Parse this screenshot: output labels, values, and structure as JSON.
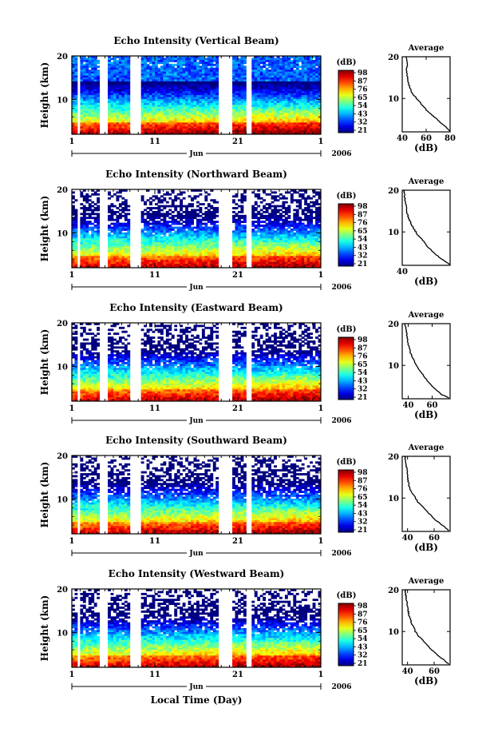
{
  "figure": {
    "xlabel": "Local Time (Day)"
  },
  "chart_data": [
    {
      "type": "heatmap",
      "title": "Echo Intensity (Vertical Beam)",
      "ylabel": "Height (km)",
      "yticks": [
        10,
        20
      ],
      "ylim": [
        2,
        20
      ],
      "xticks": [
        "1",
        "11",
        "21",
        "1"
      ],
      "month": "Jun",
      "year": "2006",
      "colorbar": {
        "unit": "(dB)",
        "ticks": [
          "98",
          "87",
          "76",
          "65",
          "54",
          "43",
          "32",
          "21"
        ]
      },
      "average": {
        "title": "Average",
        "xlabel": "(dB)",
        "xticks": [
          "40",
          "60",
          "80"
        ],
        "xlim": [
          40,
          80
        ],
        "profile": [
          [
            20,
            43
          ],
          [
            19,
            44
          ],
          [
            18,
            44.5
          ],
          [
            17,
            43.5
          ],
          [
            16,
            44
          ],
          [
            15,
            44.5
          ],
          [
            14,
            45
          ],
          [
            13,
            46
          ],
          [
            12,
            47
          ],
          [
            11,
            49
          ],
          [
            10,
            52
          ],
          [
            9,
            55
          ],
          [
            8,
            58
          ],
          [
            7,
            61
          ],
          [
            6,
            65
          ],
          [
            5,
            69
          ],
          [
            4,
            73
          ],
          [
            3,
            77
          ],
          [
            2.2,
            80
          ]
        ]
      }
    },
    {
      "type": "heatmap",
      "title": "Echo Intensity (Northward Beam)",
      "ylabel": "Height (km)",
      "yticks": [
        10,
        20
      ],
      "ylim": [
        2,
        20
      ],
      "xticks": [
        "1",
        "11",
        "21",
        "1"
      ],
      "month": "Jun",
      "year": "2006",
      "colorbar": {
        "unit": "(dB)",
        "ticks": [
          "98",
          "87",
          "76",
          "65",
          "54",
          "43",
          "32",
          "21"
        ]
      },
      "average": {
        "title": "Average",
        "xlabel": "(dB)",
        "xticks": [
          "40"
        ],
        "xlim": [
          40,
          75
        ],
        "profile": [
          [
            20,
            41
          ],
          [
            19,
            41.5
          ],
          [
            18,
            42
          ],
          [
            17,
            42.5
          ],
          [
            16,
            43
          ],
          [
            15,
            43
          ],
          [
            14,
            44
          ],
          [
            13,
            45
          ],
          [
            12,
            46.5
          ],
          [
            11,
            48
          ],
          [
            10,
            50
          ],
          [
            9,
            52
          ],
          [
            8,
            55
          ],
          [
            7,
            57
          ],
          [
            6,
            60
          ],
          [
            5,
            63
          ],
          [
            4,
            67
          ],
          [
            3,
            71
          ],
          [
            2.2,
            75
          ]
        ]
      }
    },
    {
      "type": "heatmap",
      "title": "Echo Intensity (Eastward Beam)",
      "ylabel": "Height (km)",
      "yticks": [
        10,
        20
      ],
      "ylim": [
        2,
        20
      ],
      "xticks": [
        "1",
        "11",
        "21",
        "1"
      ],
      "month": "Jun",
      "year": "2006",
      "colorbar": {
        "unit": "(dB)",
        "ticks": [
          "98",
          "87",
          "76",
          "65",
          "54",
          "43",
          "32",
          "21"
        ]
      },
      "average": {
        "title": "Average",
        "xlabel": "(dB)",
        "xticks": [
          "40",
          "60"
        ],
        "xlim": [
          35,
          75
        ],
        "profile": [
          [
            20,
            37
          ],
          [
            19,
            38
          ],
          [
            18,
            38.5
          ],
          [
            17,
            39
          ],
          [
            16,
            39.5
          ],
          [
            15,
            40
          ],
          [
            14,
            41
          ],
          [
            13,
            42
          ],
          [
            12,
            43.5
          ],
          [
            11,
            45
          ],
          [
            10,
            47
          ],
          [
            9,
            49
          ],
          [
            8,
            52
          ],
          [
            7,
            54
          ],
          [
            6,
            57
          ],
          [
            5,
            60
          ],
          [
            4,
            64
          ],
          [
            3,
            68
          ],
          [
            2.2,
            74
          ]
        ]
      }
    },
    {
      "type": "heatmap",
      "title": "Echo Intensity (Southward Beam)",
      "ylabel": "Height (km)",
      "yticks": [
        10,
        20
      ],
      "ylim": [
        2,
        20
      ],
      "xticks": [
        "1",
        "11",
        "21",
        "1"
      ],
      "month": "Jun",
      "year": "2006",
      "colorbar": {
        "unit": "(dB)",
        "ticks": [
          "98",
          "87",
          "76",
          "65",
          "54",
          "43",
          "32",
          "21"
        ]
      },
      "average": {
        "title": "Average",
        "xlabel": "(dB)",
        "xticks": [
          "40",
          "60"
        ],
        "xlim": [
          36,
          72
        ],
        "profile": [
          [
            20,
            38
          ],
          [
            19,
            38.5
          ],
          [
            18,
            39
          ],
          [
            17,
            39.5
          ],
          [
            16,
            40
          ],
          [
            15,
            40
          ],
          [
            14,
            40.5
          ],
          [
            13,
            41
          ],
          [
            12,
            42
          ],
          [
            11,
            44
          ],
          [
            10,
            46
          ],
          [
            9,
            48
          ],
          [
            8,
            51
          ],
          [
            7,
            54
          ],
          [
            6,
            57
          ],
          [
            5,
            60
          ],
          [
            4,
            64
          ],
          [
            3,
            68
          ],
          [
            2.2,
            71
          ]
        ]
      }
    },
    {
      "type": "heatmap",
      "title": "Echo Intensity (Westward Beam)",
      "ylabel": "Height (km)",
      "yticks": [
        10,
        20
      ],
      "ylim": [
        2,
        20
      ],
      "xticks": [
        "1",
        "11",
        "21",
        "1"
      ],
      "month": "Jun",
      "year": "2006",
      "colorbar": {
        "unit": "(dB)",
        "ticks": [
          "98",
          "87",
          "76",
          "65",
          "54",
          "43",
          "32",
          "21"
        ]
      },
      "average": {
        "title": "Average",
        "xlabel": "(dB)",
        "xticks": [
          "40",
          "60"
        ],
        "xlim": [
          36,
          72
        ],
        "profile": [
          [
            20,
            38
          ],
          [
            19,
            38.5
          ],
          [
            18,
            39
          ],
          [
            17,
            39.5
          ],
          [
            16,
            40
          ],
          [
            15,
            40.5
          ],
          [
            14,
            41
          ],
          [
            13,
            42
          ],
          [
            12,
            43
          ],
          [
            11,
            44.5
          ],
          [
            10,
            46
          ],
          [
            9,
            48
          ],
          [
            8,
            51
          ],
          [
            7,
            54
          ],
          [
            6,
            57
          ],
          [
            5,
            60
          ],
          [
            4,
            64
          ],
          [
            3,
            68
          ],
          [
            2.2,
            71
          ]
        ]
      }
    }
  ]
}
